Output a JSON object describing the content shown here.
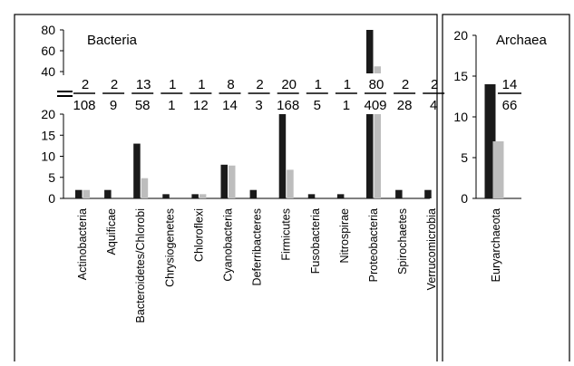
{
  "chart_data": [
    {
      "type": "bar",
      "title": "Bacteria",
      "categories": [
        "Actinobacteria",
        "Aquificae",
        "Bacteroidetes/Chlorobi",
        "Chrysiogenetes",
        "Chloroflexi",
        "Cyanobacteria",
        "Deferribacteres",
        "Firmicutes",
        "Fusobacteria",
        "Nitrospirae",
        "Proteobacteria",
        "Spirochaetes",
        "Verrucomicrobia"
      ],
      "series": [
        {
          "color": "#1a1a1a",
          "values": [
            2,
            2,
            13,
            1,
            1,
            8,
            2,
            20,
            1,
            1,
            80,
            2,
            2
          ]
        },
        {
          "color": "#bdbdbd",
          "values": [
            2,
            0,
            4.8,
            0,
            1,
            7.8,
            0,
            6.8,
            0,
            0,
            45,
            0,
            0
          ]
        }
      ],
      "fraction_labels": [
        {
          "numerator": "2",
          "denominator": "108"
        },
        {
          "numerator": "2",
          "denominator": "9"
        },
        {
          "numerator": "13",
          "denominator": "58"
        },
        {
          "numerator": "1",
          "denominator": "1"
        },
        {
          "numerator": "1",
          "denominator": "12"
        },
        {
          "numerator": "8",
          "denominator": "14"
        },
        {
          "numerator": "2",
          "denominator": "3"
        },
        {
          "numerator": "20",
          "denominator": "168"
        },
        {
          "numerator": "1",
          "denominator": "5"
        },
        {
          "numerator": "1",
          "denominator": "1"
        },
        {
          "numerator": "80",
          "denominator": "409"
        },
        {
          "numerator": "2",
          "denominator": "28"
        },
        {
          "numerator": "2",
          "denominator": "4"
        }
      ],
      "y_lower": {
        "ticks": [
          "0",
          "5",
          "10",
          "15",
          "20"
        ],
        "ylim": [
          0,
          20
        ]
      },
      "y_upper": {
        "ticks": [
          "40",
          "60",
          "80"
        ],
        "ylim": [
          40,
          80
        ]
      },
      "axis_break": true,
      "grid": false
    },
    {
      "type": "bar",
      "title": "Archaea",
      "categories": [
        "Euryarchaeota"
      ],
      "series": [
        {
          "color": "#1a1a1a",
          "values": [
            14
          ]
        },
        {
          "color": "#bdbdbd",
          "values": [
            7
          ]
        }
      ],
      "fraction_labels": [
        {
          "numerator": "14",
          "denominator": "66"
        }
      ],
      "y": {
        "ticks": [
          "0",
          "5",
          "10",
          "15",
          "20"
        ],
        "ylim": [
          0,
          20
        ]
      },
      "grid": false
    }
  ]
}
